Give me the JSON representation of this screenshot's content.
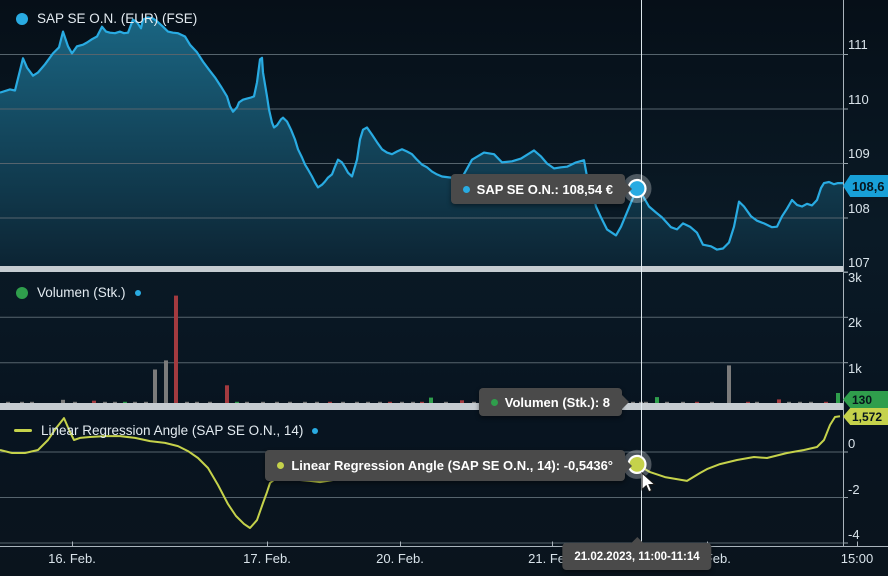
{
  "colors": {
    "price_line": "#29abe2",
    "price_fill_top": "#1b6a88",
    "price_fill_bottom": "#0c2433",
    "volume_up": "#2f9e4c",
    "volume_down": "#a33a3f",
    "volume_neutral": "#7b7b7b",
    "angle_line": "#c5d24b",
    "badge_price_bg": "#18a0d8",
    "badge_volume_bg": "#2f9e4c",
    "badge_angle_bg": "#c5d24b",
    "tooltip_bg": "#4a4a4a",
    "grid": "#56646d",
    "axis": "#c6ccd1",
    "crosshair": "#e8f2f7"
  },
  "x_axis": {
    "labels": [
      "16. Feb.",
      "17. Feb.",
      "20. Feb.",
      "21. Feb.",
      "22. Feb.",
      "15:00"
    ]
  },
  "tooltips": {
    "price": {
      "text": "SAP SE O.N.: 108,54 €"
    },
    "volume": {
      "text": "Volumen (Stk.): 8"
    },
    "angle": {
      "text": "Linear Regression Angle (SAP SE O.N., 14): -0,5436°"
    },
    "date": {
      "text": "21.02.2023, 11:00-11:14"
    }
  },
  "badges": {
    "price": "108,6",
    "volume": "130",
    "angle": "1,572"
  },
  "chart_data": [
    {
      "id": "price",
      "type": "area",
      "title": "SAP SE O.N. (EUR) (FSE)",
      "ylabel": "EUR",
      "ylim": [
        107.1,
        112.0
      ],
      "grid": true,
      "gridlines": [
        111,
        110,
        109,
        108,
        107
      ],
      "tick_labels": [
        "111",
        "110",
        "109",
        "108",
        "107"
      ],
      "last_value": "108,6",
      "marker": {
        "x": 637,
        "value": 108.54
      },
      "points": [
        [
          0,
          110.3
        ],
        [
          10,
          110.36
        ],
        [
          15,
          110.34
        ],
        [
          23,
          110.93
        ],
        [
          27,
          110.76
        ],
        [
          33,
          110.61
        ],
        [
          38,
          110.67
        ],
        [
          45,
          110.82
        ],
        [
          53,
          111.02
        ],
        [
          59,
          111.13
        ],
        [
          63,
          111.42
        ],
        [
          68,
          111.15
        ],
        [
          72,
          111.02
        ],
        [
          77,
          111.15
        ],
        [
          83,
          111.18
        ],
        [
          87,
          111.22
        ],
        [
          92,
          111.28
        ],
        [
          97,
          111.33
        ],
        [
          102,
          111.51
        ],
        [
          106,
          111.42
        ],
        [
          110,
          111.4
        ],
        [
          115,
          111.39
        ],
        [
          120,
          111.42
        ],
        [
          124,
          111.39
        ],
        [
          128,
          111.4
        ],
        [
          133,
          111.64
        ],
        [
          137,
          111.59
        ],
        [
          141,
          111.48
        ],
        [
          143,
          111.64
        ],
        [
          148,
          111.68
        ],
        [
          153,
          111.66
        ],
        [
          157,
          111.61
        ],
        [
          163,
          111.51
        ],
        [
          168,
          111.42
        ],
        [
          173,
          111.4
        ],
        [
          178,
          111.39
        ],
        [
          185,
          111.33
        ],
        [
          190,
          111.18
        ],
        [
          197,
          111.04
        ],
        [
          203,
          110.87
        ],
        [
          209,
          110.72
        ],
        [
          215,
          110.58
        ],
        [
          221,
          110.41
        ],
        [
          227,
          110.23
        ],
        [
          230,
          110.05
        ],
        [
          233,
          109.95
        ],
        [
          237,
          110.03
        ],
        [
          239,
          110.12
        ],
        [
          243,
          110.17
        ],
        [
          247,
          110.19
        ],
        [
          251,
          110.21
        ],
        [
          254,
          110.23
        ],
        [
          257,
          110.49
        ],
        [
          260,
          110.91
        ],
        [
          262,
          110.94
        ],
        [
          263,
          110.67
        ],
        [
          267,
          110.23
        ],
        [
          269,
          109.99
        ],
        [
          272,
          109.75
        ],
        [
          274,
          109.66
        ],
        [
          277,
          109.7
        ],
        [
          281,
          109.81
        ],
        [
          283,
          109.84
        ],
        [
          287,
          109.77
        ],
        [
          291,
          109.62
        ],
        [
          295,
          109.44
        ],
        [
          298,
          109.26
        ],
        [
          302,
          109.11
        ],
        [
          305,
          108.98
        ],
        [
          308,
          108.89
        ],
        [
          312,
          108.76
        ],
        [
          315,
          108.65
        ],
        [
          318,
          108.56
        ],
        [
          322,
          108.61
        ],
        [
          325,
          108.67
        ],
        [
          328,
          108.74
        ],
        [
          332,
          108.8
        ],
        [
          335,
          108.94
        ],
        [
          338,
          109.07
        ],
        [
          342,
          109.02
        ],
        [
          345,
          108.93
        ],
        [
          348,
          108.83
        ],
        [
          352,
          108.76
        ],
        [
          357,
          109.07
        ],
        [
          360,
          109.44
        ],
        [
          363,
          109.62
        ],
        [
          367,
          109.66
        ],
        [
          372,
          109.53
        ],
        [
          377,
          109.39
        ],
        [
          382,
          109.26
        ],
        [
          387,
          109.2
        ],
        [
          392,
          109.17
        ],
        [
          397,
          109.22
        ],
        [
          402,
          109.26
        ],
        [
          407,
          109.22
        ],
        [
          412,
          109.17
        ],
        [
          417,
          109.07
        ],
        [
          422,
          108.98
        ],
        [
          427,
          108.93
        ],
        [
          432,
          108.85
        ],
        [
          437,
          108.8
        ],
        [
          442,
          108.76
        ],
        [
          451,
          108.74
        ],
        [
          462,
          108.74
        ],
        [
          472,
          109.07
        ],
        [
          484,
          109.2
        ],
        [
          494,
          109.17
        ],
        [
          502,
          109.02
        ],
        [
          512,
          109.04
        ],
        [
          521,
          109.09
        ],
        [
          534,
          109.24
        ],
        [
          541,
          109.13
        ],
        [
          547,
          109.0
        ],
        [
          554,
          108.91
        ],
        [
          561,
          108.93
        ],
        [
          567,
          108.94
        ],
        [
          576,
          109.02
        ],
        [
          584,
          109.06
        ],
        [
          587,
          108.76
        ],
        [
          591,
          108.58
        ],
        [
          596,
          108.21
        ],
        [
          601,
          108.01
        ],
        [
          607,
          107.79
        ],
        [
          616,
          107.68
        ],
        [
          621,
          107.84
        ],
        [
          626,
          108.06
        ],
        [
          631,
          108.28
        ],
        [
          637,
          108.54
        ],
        [
          642,
          108.43
        ],
        [
          649,
          108.21
        ],
        [
          656,
          108.1
        ],
        [
          662,
          108.01
        ],
        [
          671,
          107.83
        ],
        [
          677,
          107.79
        ],
        [
          683,
          107.9
        ],
        [
          690,
          107.84
        ],
        [
          697,
          107.73
        ],
        [
          703,
          107.51
        ],
        [
          711,
          107.48
        ],
        [
          717,
          107.42
        ],
        [
          723,
          107.44
        ],
        [
          729,
          107.55
        ],
        [
          734,
          107.84
        ],
        [
          739,
          108.3
        ],
        [
          744,
          108.21
        ],
        [
          751,
          108.03
        ],
        [
          757,
          107.95
        ],
        [
          764,
          107.9
        ],
        [
          772,
          107.83
        ],
        [
          777,
          107.84
        ],
        [
          782,
          108.03
        ],
        [
          787,
          108.17
        ],
        [
          792,
          108.33
        ],
        [
          797,
          108.24
        ],
        [
          802,
          108.21
        ],
        [
          807,
          108.26
        ],
        [
          812,
          108.23
        ],
        [
          817,
          108.33
        ],
        [
          821,
          108.55
        ],
        [
          824,
          108.64
        ],
        [
          829,
          108.66
        ],
        [
          834,
          108.62
        ],
        [
          838,
          108.64
        ],
        [
          843,
          108.64
        ]
      ]
    },
    {
      "id": "volume",
      "type": "bar",
      "title": "Volumen (Stk.)",
      "ylabel": "Stk.",
      "ylim": [
        0,
        3000
      ],
      "grid": true,
      "gridlines": [
        3000,
        2000,
        1000
      ],
      "tick_labels": [
        "3k",
        "2k",
        "1k"
      ],
      "last_value": "130",
      "bars": [
        [
          8,
          30,
          "n"
        ],
        [
          22,
          60,
          "n"
        ],
        [
          32,
          40,
          "n"
        ],
        [
          63,
          180,
          "n"
        ],
        [
          75,
          35,
          "n"
        ],
        [
          94,
          160,
          "d"
        ],
        [
          105,
          25,
          "n"
        ],
        [
          115,
          45,
          "n"
        ],
        [
          125,
          45,
          "u"
        ],
        [
          135,
          35,
          "n"
        ],
        [
          146,
          25,
          "n"
        ],
        [
          155,
          850,
          "n"
        ],
        [
          166,
          1050,
          "n"
        ],
        [
          176,
          2480,
          "d"
        ],
        [
          187,
          25,
          "n"
        ],
        [
          197,
          30,
          "n"
        ],
        [
          210,
          20,
          "n"
        ],
        [
          227,
          500,
          "d"
        ],
        [
          237,
          45,
          "u"
        ],
        [
          247,
          30,
          "n"
        ],
        [
          263,
          25,
          "n"
        ],
        [
          277,
          35,
          "n"
        ],
        [
          290,
          25,
          "n"
        ],
        [
          305,
          40,
          "n"
        ],
        [
          317,
          40,
          "n"
        ],
        [
          330,
          30,
          "d"
        ],
        [
          343,
          40,
          "n"
        ],
        [
          357,
          50,
          "n"
        ],
        [
          368,
          80,
          "n"
        ],
        [
          380,
          40,
          "n"
        ],
        [
          390,
          70,
          "d"
        ],
        [
          402,
          40,
          "n"
        ],
        [
          413,
          30,
          "n"
        ],
        [
          422,
          120,
          "d"
        ],
        [
          431,
          230,
          "u"
        ],
        [
          446,
          40,
          "n"
        ],
        [
          462,
          170,
          "d"
        ],
        [
          474,
          30,
          "n"
        ],
        [
          491,
          45,
          "n"
        ],
        [
          502,
          25,
          "n"
        ],
        [
          516,
          30,
          "n"
        ],
        [
          531,
          40,
          "n"
        ],
        [
          546,
          25,
          "n"
        ],
        [
          560,
          30,
          "n"
        ],
        [
          575,
          20,
          "n"
        ],
        [
          590,
          25,
          "n"
        ],
        [
          605,
          30,
          "n"
        ],
        [
          620,
          25,
          "n"
        ],
        [
          633,
          20,
          "n"
        ],
        [
          641,
          8,
          "n"
        ],
        [
          646,
          40,
          "n"
        ],
        [
          657,
          240,
          "u"
        ],
        [
          667,
          110,
          "n"
        ],
        [
          683,
          20,
          "n"
        ],
        [
          697,
          35,
          "d"
        ],
        [
          712,
          20,
          "n"
        ],
        [
          729,
          940,
          "n"
        ],
        [
          748,
          60,
          "d"
        ],
        [
          757,
          45,
          "n"
        ],
        [
          779,
          190,
          "d"
        ],
        [
          789,
          55,
          "n"
        ],
        [
          800,
          20,
          "n"
        ],
        [
          811,
          20,
          "n"
        ],
        [
          826,
          60,
          "d"
        ],
        [
          838,
          330,
          "u"
        ]
      ]
    },
    {
      "id": "angle",
      "type": "line",
      "title": "Linear Regression Angle (SAP SE O.N., 14)",
      "ylabel": "degrees",
      "ylim": [
        -4.13,
        1.76
      ],
      "grid": true,
      "gridlines": [
        0,
        -2,
        -4
      ],
      "tick_labels": [
        "0",
        "-2",
        "-4"
      ],
      "last_value": "1,572",
      "marker": {
        "x": 637,
        "value": -0.5436
      },
      "points": [
        [
          0,
          0.09
        ],
        [
          12,
          -0.04
        ],
        [
          25,
          -0.04
        ],
        [
          38,
          0.09
        ],
        [
          48,
          0.53
        ],
        [
          56,
          1.05
        ],
        [
          64,
          1.49
        ],
        [
          70,
          0.88
        ],
        [
          74,
          0.53
        ],
        [
          80,
          0.62
        ],
        [
          90,
          0.66
        ],
        [
          105,
          0.7
        ],
        [
          120,
          0.7
        ],
        [
          135,
          0.62
        ],
        [
          150,
          0.48
        ],
        [
          165,
          0.4
        ],
        [
          178,
          0.26
        ],
        [
          188,
          0.04
        ],
        [
          198,
          -0.26
        ],
        [
          208,
          -0.7
        ],
        [
          218,
          -1.45
        ],
        [
          228,
          -2.29
        ],
        [
          236,
          -2.81
        ],
        [
          244,
          -3.16
        ],
        [
          250,
          -3.34
        ],
        [
          257,
          -2.99
        ],
        [
          263,
          -2.24
        ],
        [
          267,
          -1.76
        ],
        [
          270,
          -1.36
        ],
        [
          275,
          -1.19
        ],
        [
          285,
          -1.19
        ],
        [
          300,
          -1.23
        ],
        [
          310,
          -1.27
        ],
        [
          320,
          -1.32
        ],
        [
          333,
          -1.23
        ],
        [
          347,
          -1.14
        ],
        [
          380,
          -0.97
        ],
        [
          420,
          -0.79
        ],
        [
          470,
          -0.62
        ],
        [
          530,
          -0.48
        ],
        [
          580,
          -0.48
        ],
        [
          610,
          -0.53
        ],
        [
          637,
          -0.5436
        ],
        [
          650,
          -0.88
        ],
        [
          665,
          -1.1
        ],
        [
          687,
          -1.27
        ],
        [
          700,
          -0.92
        ],
        [
          707,
          -0.75
        ],
        [
          720,
          -0.53
        ],
        [
          737,
          -0.35
        ],
        [
          754,
          -0.22
        ],
        [
          767,
          -0.26
        ],
        [
          787,
          -0.04
        ],
        [
          804,
          0.09
        ],
        [
          817,
          0.22
        ],
        [
          824,
          0.53
        ],
        [
          830,
          1.19
        ],
        [
          835,
          1.54
        ],
        [
          840,
          1.572
        ]
      ]
    }
  ]
}
